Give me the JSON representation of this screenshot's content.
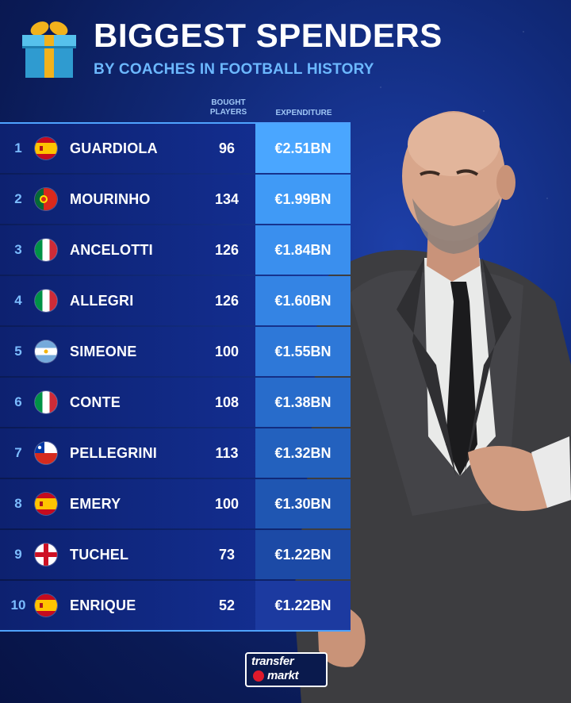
{
  "header": {
    "title": "BIGGEST SPENDERS",
    "subtitle": "BY COACHES IN FOOTBALL HISTORY"
  },
  "columns": {
    "bought": "BOUGHT PLAYERS",
    "bought_line1": "BOUGHT",
    "bought_line2": "PLAYERS",
    "expenditure": "EXPENDITURE"
  },
  "colors": {
    "accent": "#4fa3ff",
    "expenditure_top": "#4aa6ff",
    "expenditure_bottom": "#1c3aa0",
    "gift_box": "#3aa7d9",
    "gift_ribbon": "#f2b21c"
  },
  "coaches": [
    {
      "rank": "1",
      "flag": "spain-flag-icon",
      "name": "GUARDIOLA",
      "bought": "96",
      "expenditure": "€2.51BN"
    },
    {
      "rank": "2",
      "flag": "portugal-flag-icon",
      "name": "MOURINHO",
      "bought": "134",
      "expenditure": "€1.99BN"
    },
    {
      "rank": "3",
      "flag": "italy-flag-icon",
      "name": "ANCELOTTI",
      "bought": "126",
      "expenditure": "€1.84BN"
    },
    {
      "rank": "4",
      "flag": "italy-flag-icon",
      "name": "ALLEGRI",
      "bought": "126",
      "expenditure": "€1.60BN"
    },
    {
      "rank": "5",
      "flag": "argentina-flag-icon",
      "name": "SIMEONE",
      "bought": "100",
      "expenditure": "€1.55BN"
    },
    {
      "rank": "6",
      "flag": "italy-flag-icon",
      "name": "CONTE",
      "bought": "108",
      "expenditure": "€1.38BN"
    },
    {
      "rank": "7",
      "flag": "chile-flag-icon",
      "name": "PELLEGRINI",
      "bought": "113",
      "expenditure": "€1.32BN"
    },
    {
      "rank": "8",
      "flag": "spain-flag-icon",
      "name": "EMERY",
      "bought": "100",
      "expenditure": "€1.30BN"
    },
    {
      "rank": "9",
      "flag": "england-flag-icon",
      "name": "TUCHEL",
      "bought": "73",
      "expenditure": "€1.22BN"
    },
    {
      "rank": "10",
      "flag": "spain-flag-icon",
      "name": "ENRIQUE",
      "bought": "52",
      "expenditure": "€1.22BN"
    }
  ],
  "logo": {
    "line1": "transfer",
    "line2": "markt"
  }
}
